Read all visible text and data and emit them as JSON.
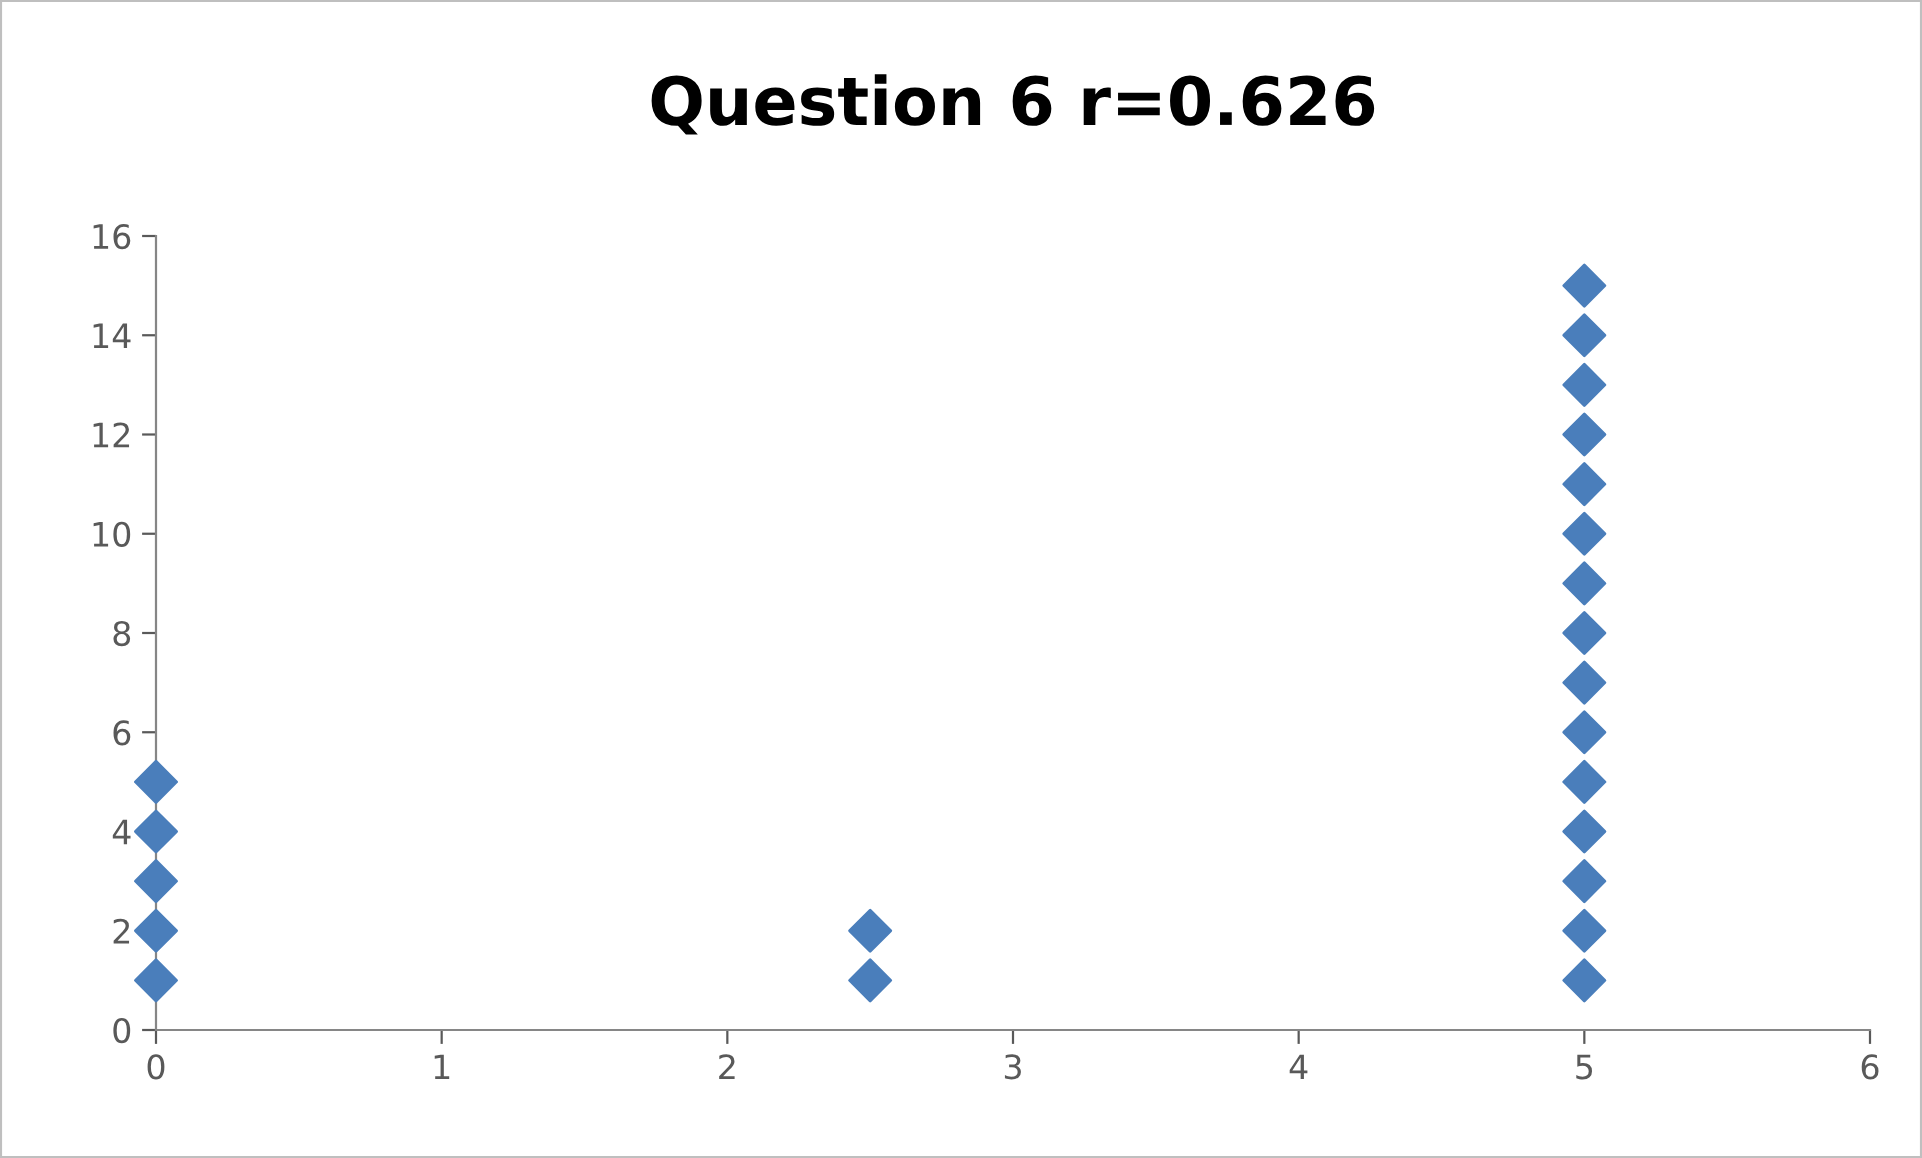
{
  "chart_data": {
    "type": "scatter",
    "title": "Question 6 r=0.626",
    "series": [
      {
        "color": "#4a7ebb",
        "x": [
          0,
          0,
          0,
          0,
          0,
          2.5,
          2.5,
          5,
          5,
          5,
          5,
          5,
          5,
          5,
          5,
          5,
          5,
          5,
          5,
          5,
          5,
          5
        ],
        "values": [
          1,
          2,
          3,
          4,
          5,
          1,
          2,
          1,
          2,
          3,
          4,
          5,
          6,
          7,
          8,
          9,
          10,
          11,
          12,
          13,
          14,
          15
        ]
      }
    ],
    "xlim": [
      0,
      6
    ],
    "xticks": [
      0,
      1,
      2,
      3,
      4,
      5,
      6
    ],
    "ylim": [
      0,
      16
    ],
    "yticks": [
      0,
      2,
      4,
      6,
      8,
      10,
      12,
      14,
      16
    ],
    "marker": "diamond",
    "grid": false,
    "legend": false
  }
}
